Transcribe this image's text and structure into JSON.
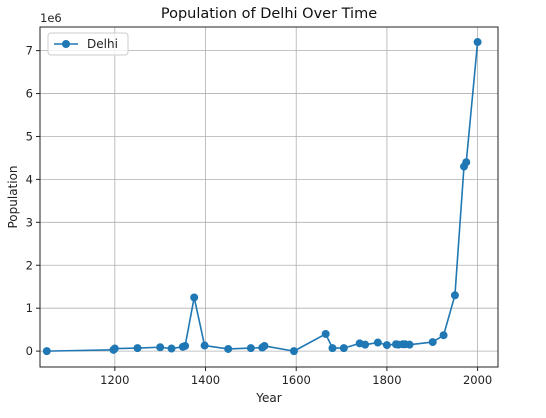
{
  "chart_data": {
    "type": "line",
    "title": "Population of Delhi Over Time",
    "xlabel": "Year",
    "ylabel": "Population",
    "y_offset_label": "1e6",
    "xlim": [
      1035,
      2045
    ],
    "ylim": [
      -0.37,
      7.55
    ],
    "x_ticks": [
      1200,
      1400,
      1600,
      1800,
      2000
    ],
    "y_ticks": [
      0,
      1,
      2,
      3,
      4,
      5,
      6,
      7
    ],
    "grid": true,
    "legend_position": "upper-left",
    "series": [
      {
        "name": "Delhi",
        "color": "#1f77b4",
        "marker": "circle",
        "x": [
          1050,
          1197,
          1200,
          1250,
          1300,
          1325,
          1350,
          1355,
          1375,
          1398,
          1450,
          1500,
          1525,
          1530,
          1595,
          1665,
          1680,
          1705,
          1740,
          1752,
          1780,
          1800,
          1820,
          1825,
          1835,
          1840,
          1850,
          1901,
          1925,
          1950,
          1970,
          1975,
          2000
        ],
        "y": [
          0.0,
          0.03,
          0.06,
          0.07,
          0.09,
          0.06,
          0.1,
          0.12,
          1.25,
          0.13,
          0.05,
          0.07,
          0.08,
          0.12,
          0.0,
          0.4,
          0.07,
          0.07,
          0.18,
          0.15,
          0.2,
          0.14,
          0.16,
          0.15,
          0.16,
          0.16,
          0.15,
          0.21,
          0.37,
          1.3,
          4.3,
          4.4,
          7.2
        ]
      }
    ]
  }
}
